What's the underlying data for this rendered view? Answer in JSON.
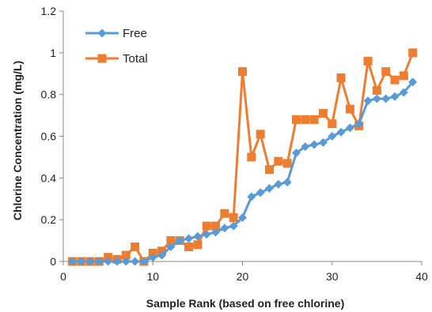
{
  "chart_data": {
    "type": "line",
    "title": "",
    "xlabel": "Sample Rank (based on free chlorine)",
    "ylabel": "Chlorine Concentration (mg/L)",
    "xlim": [
      0,
      40
    ],
    "ylim": [
      0,
      1.2
    ],
    "xticks": [
      0,
      10,
      20,
      30,
      40
    ],
    "yticks": [
      0,
      0.2,
      0.4,
      0.6,
      0.8,
      1,
      1.2
    ],
    "xtick_labels": [
      "0",
      "10",
      "20",
      "30",
      "40"
    ],
    "ytick_labels": [
      "0",
      "0.2",
      "0.4",
      "0.6",
      "0.8",
      "1",
      "1.2"
    ],
    "grid": false,
    "legend_position": "top-left",
    "x": [
      1,
      2,
      3,
      4,
      5,
      6,
      7,
      8,
      9,
      10,
      11,
      12,
      13,
      14,
      15,
      16,
      17,
      18,
      19,
      20,
      21,
      22,
      23,
      24,
      25,
      26,
      27,
      28,
      29,
      30,
      31,
      32,
      33,
      34,
      35,
      36,
      37,
      38,
      39
    ],
    "series": [
      {
        "name": "Free",
        "color": "#5b9bd5",
        "marker": "diamond",
        "values": [
          0,
          0,
          0,
          0,
          0,
          0,
          0,
          0,
          0,
          0.02,
          0.03,
          0.07,
          0.1,
          0.11,
          0.12,
          0.13,
          0.14,
          0.16,
          0.17,
          0.21,
          0.31,
          0.33,
          0.35,
          0.37,
          0.38,
          0.52,
          0.55,
          0.56,
          0.57,
          0.6,
          0.62,
          0.64,
          0.66,
          0.77,
          0.78,
          0.78,
          0.79,
          0.81,
          0.86
        ]
      },
      {
        "name": "Total",
        "color": "#ed7d31",
        "marker": "square",
        "values": [
          0,
          0,
          0,
          0,
          0.02,
          0.01,
          0.03,
          0.07,
          0,
          0.04,
          0.05,
          0.1,
          0.1,
          0.07,
          0.08,
          0.17,
          0.17,
          0.23,
          0.21,
          0.91,
          0.5,
          0.61,
          0.44,
          0.48,
          0.47,
          0.68,
          0.68,
          0.68,
          0.71,
          0.66,
          0.88,
          0.73,
          0.65,
          0.96,
          0.82,
          0.91,
          0.87,
          0.89,
          1.0
        ]
      }
    ]
  }
}
